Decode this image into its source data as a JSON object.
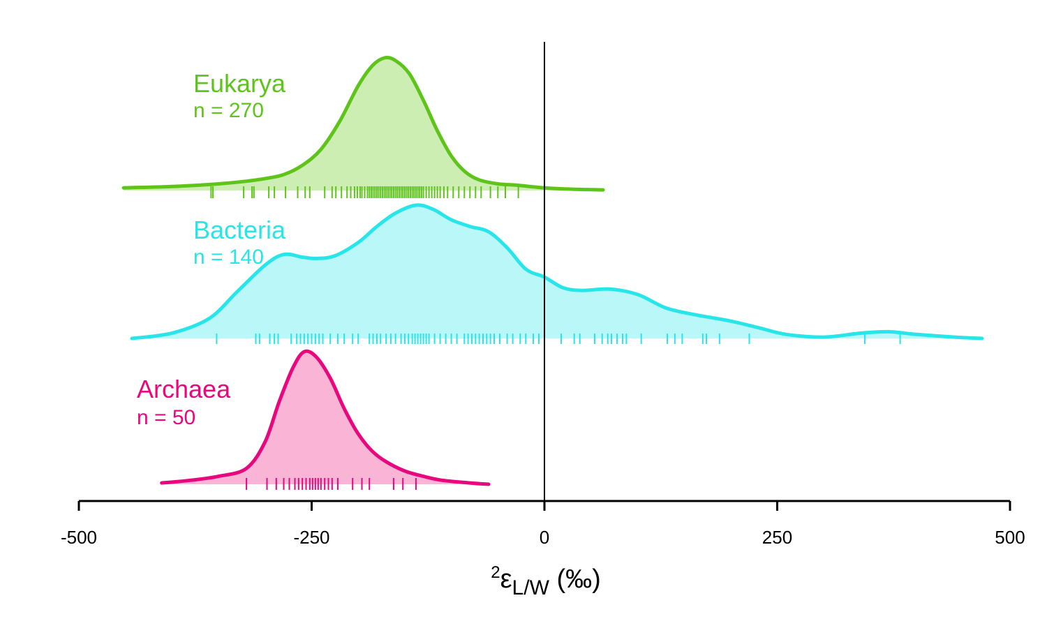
{
  "chart_data": {
    "type": "area",
    "xlabel": {
      "superscript": "2",
      "symbol": "ε",
      "subscript": "L/W",
      "unit": " (‰)"
    },
    "xlim": [
      -500,
      500
    ],
    "xticks": [
      -500,
      -250,
      0,
      250,
      500
    ],
    "xtick_labels": [
      "-500",
      "-250",
      "0",
      "250",
      "500"
    ],
    "reference_line_x": 0,
    "grid": false,
    "series": [
      {
        "name": "Eukarya",
        "n_label": "n = 270",
        "color": "#5ec41a",
        "fill": "#cdeeb2",
        "density": [
          [
            -452,
            0.02
          ],
          [
            -400,
            0.03
          ],
          [
            -350,
            0.05
          ],
          [
            -320,
            0.07
          ],
          [
            -300,
            0.09
          ],
          [
            -280,
            0.12
          ],
          [
            -260,
            0.19
          ],
          [
            -240,
            0.31
          ],
          [
            -220,
            0.52
          ],
          [
            -200,
            0.79
          ],
          [
            -185,
            0.94
          ],
          [
            -172,
            1.0
          ],
          [
            -160,
            0.98
          ],
          [
            -145,
            0.88
          ],
          [
            -130,
            0.68
          ],
          [
            -115,
            0.45
          ],
          [
            -100,
            0.26
          ],
          [
            -85,
            0.14
          ],
          [
            -70,
            0.08
          ],
          [
            -50,
            0.05
          ],
          [
            -30,
            0.04
          ],
          [
            0,
            0.02
          ],
          [
            30,
            0.01
          ],
          [
            63,
            0.005
          ]
        ],
        "rug": [
          -358,
          -356,
          -323,
          -314,
          -312,
          -296,
          -290,
          -278,
          -265,
          -257,
          -252,
          -236,
          -228,
          -224,
          -218,
          -212,
          -208,
          -204,
          -201,
          -198,
          -196,
          -193,
          -190,
          -188,
          -186,
          -184,
          -182,
          -180,
          -178,
          -176,
          -174,
          -172,
          -170,
          -168,
          -166,
          -164,
          -162,
          -160,
          -158,
          -156,
          -154,
          -152,
          -150,
          -148,
          -146,
          -144,
          -142,
          -140,
          -138,
          -136,
          -134,
          -132,
          -130,
          -127,
          -124,
          -121,
          -118,
          -115,
          -112,
          -108,
          -104,
          -98,
          -92,
          -86,
          -80,
          -74,
          -68,
          -58,
          -50,
          -42,
          -28
        ]
      },
      {
        "name": "Bacteria",
        "n_label": "n = 140",
        "color": "#27e5e8",
        "fill": "#baf7f8",
        "density": [
          [
            -443,
            0.0
          ],
          [
            -400,
            0.04
          ],
          [
            -360,
            0.15
          ],
          [
            -330,
            0.35
          ],
          [
            -300,
            0.55
          ],
          [
            -280,
            0.63
          ],
          [
            -260,
            0.61
          ],
          [
            -245,
            0.6
          ],
          [
            -225,
            0.62
          ],
          [
            -200,
            0.72
          ],
          [
            -180,
            0.84
          ],
          [
            -160,
            0.94
          ],
          [
            -138,
            1.0
          ],
          [
            -120,
            0.97
          ],
          [
            -100,
            0.89
          ],
          [
            -80,
            0.84
          ],
          [
            -60,
            0.8
          ],
          [
            -40,
            0.68
          ],
          [
            -20,
            0.52
          ],
          [
            0,
            0.46
          ],
          [
            20,
            0.38
          ],
          [
            40,
            0.36
          ],
          [
            70,
            0.37
          ],
          [
            100,
            0.33
          ],
          [
            130,
            0.23
          ],
          [
            160,
            0.18
          ],
          [
            200,
            0.13
          ],
          [
            230,
            0.08
          ],
          [
            260,
            0.03
          ],
          [
            300,
            0.01
          ],
          [
            340,
            0.04
          ],
          [
            370,
            0.05
          ],
          [
            400,
            0.03
          ],
          [
            440,
            0.01
          ],
          [
            470,
            0.0
          ]
        ],
        "rug": [
          -352,
          -310,
          -306,
          -295,
          -290,
          -286,
          -272,
          -266,
          -262,
          -258,
          -254,
          -250,
          -246,
          -242,
          -238,
          -230,
          -222,
          -215,
          -206,
          -200,
          -188,
          -184,
          -180,
          -176,
          -170,
          -165,
          -160,
          -154,
          -150,
          -146,
          -142,
          -139,
          -136,
          -133,
          -130,
          -127,
          -124,
          -118,
          -112,
          -106,
          -100,
          -94,
          -86,
          -82,
          -78,
          -74,
          -70,
          -66,
          -62,
          -58,
          -54,
          -48,
          -40,
          -34,
          -26,
          -20,
          -12,
          -6,
          18,
          32,
          38,
          54,
          62,
          68,
          72,
          78,
          84,
          88,
          104,
          132,
          140,
          148,
          170,
          174,
          188,
          220,
          344,
          382
        ]
      },
      {
        "name": "Archaea",
        "n_label": "n = 50",
        "color": "#e8077d",
        "fill": "#f9b4d6",
        "density": [
          [
            -411,
            0.01
          ],
          [
            -380,
            0.03
          ],
          [
            -350,
            0.06
          ],
          [
            -320,
            0.12
          ],
          [
            -300,
            0.32
          ],
          [
            -285,
            0.62
          ],
          [
            -270,
            0.88
          ],
          [
            -258,
            1.0
          ],
          [
            -245,
            0.96
          ],
          [
            -230,
            0.8
          ],
          [
            -215,
            0.57
          ],
          [
            -200,
            0.38
          ],
          [
            -185,
            0.25
          ],
          [
            -170,
            0.17
          ],
          [
            -150,
            0.1
          ],
          [
            -130,
            0.06
          ],
          [
            -110,
            0.03
          ],
          [
            -80,
            0.01
          ],
          [
            -60,
            0.0
          ]
        ],
        "rug": [
          -320,
          -298,
          -288,
          -280,
          -274,
          -268,
          -264,
          -260,
          -256,
          -252,
          -249,
          -246,
          -243,
          -240,
          -236,
          -232,
          -228,
          -222,
          -206,
          -196,
          -188,
          -162,
          -152,
          -138
        ]
      }
    ]
  }
}
